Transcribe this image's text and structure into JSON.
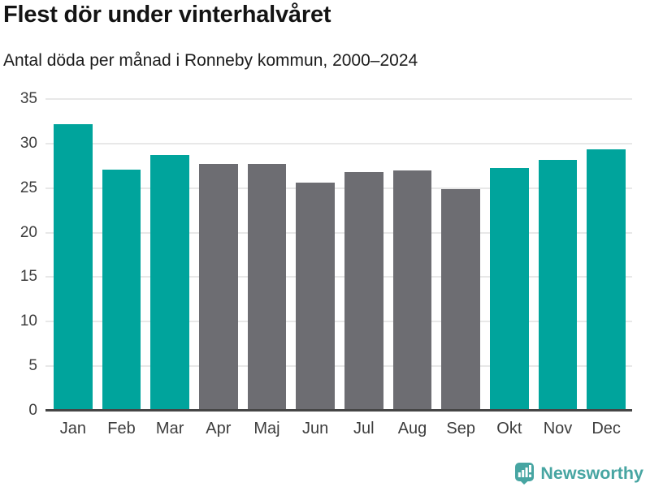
{
  "title": "Flest dör under vinterhalvåret",
  "subtitle": "Antal döda per månad i Ronneby kommun, 2000–2024",
  "brand": {
    "name": "Newsworthy",
    "icon": "speech-bubble-bar-chart-exclamation-icon",
    "color": "#47a5a2"
  },
  "colors": {
    "background": "#ffffff",
    "title_text": "#141414",
    "subtitle_text": "#1c1c1c",
    "tick_text": "#3d3d3d",
    "gridline": "#e8e8e8",
    "axis_line": "#454545",
    "winter_bar": "#00a49c",
    "summer_bar": "#6d6d72"
  },
  "chart_data": {
    "type": "bar",
    "title": "Flest dör under vinterhalvåret",
    "subtitle": "Antal döda per månad i Ronneby kommun, 2000–2024",
    "categories": [
      "Jan",
      "Feb",
      "Mar",
      "Apr",
      "Maj",
      "Jun",
      "Jul",
      "Aug",
      "Sep",
      "Okt",
      "Nov",
      "Dec"
    ],
    "values": [
      32.1,
      27.0,
      28.6,
      27.6,
      27.6,
      25.5,
      26.7,
      26.9,
      24.8,
      27.2,
      28.1,
      29.3
    ],
    "bar_groups": [
      "winter",
      "winter",
      "winter",
      "summer",
      "summer",
      "summer",
      "summer",
      "summer",
      "summer",
      "winter",
      "winter",
      "winter"
    ],
    "group_colors": {
      "winter": "#00a49c",
      "summer": "#6d6d72"
    },
    "xlabel": "",
    "ylabel": "",
    "ylim": [
      0,
      35
    ],
    "yticks": [
      0,
      5,
      10,
      15,
      20,
      25,
      30,
      35
    ],
    "grid": true,
    "legend": "none"
  }
}
